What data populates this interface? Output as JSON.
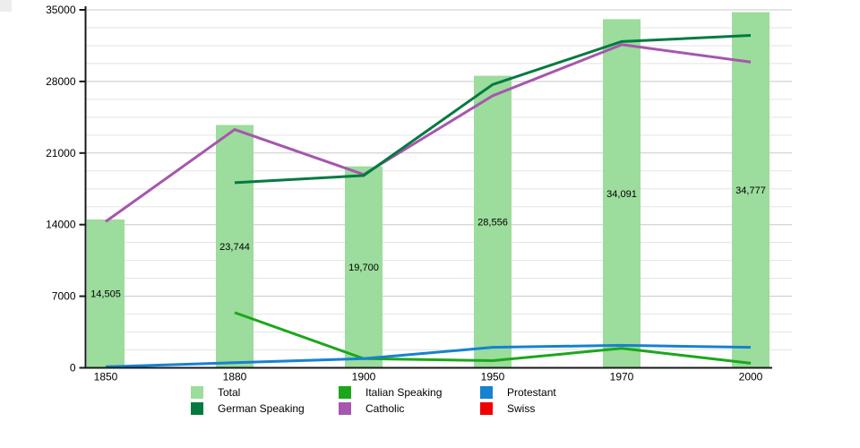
{
  "chart_data": {
    "type": "bar+line",
    "categories": [
      "1850",
      "1880",
      "1900",
      "1950",
      "1970",
      "2000"
    ],
    "y_axis": {
      "min": 0,
      "max": 35000,
      "major_tick": 7000,
      "minor_tick": 1750,
      "tick_labels": [
        "0",
        "7000",
        "14000",
        "21000",
        "28000",
        "35000"
      ]
    },
    "grid": {
      "horizontal": true,
      "vertical": false
    },
    "bars": {
      "name": "Total",
      "color": "#9CDC9C",
      "values": [
        14505,
        23744,
        19700,
        28556,
        34091,
        34777
      ],
      "value_labels": [
        "14,505",
        "23,744",
        "19,700",
        "28,556",
        "34,091",
        "34,777"
      ]
    },
    "series": [
      {
        "name": "Italian Speaking",
        "color": "#1BA71B",
        "values": [
          null,
          5400,
          900,
          700,
          1900,
          450
        ]
      },
      {
        "name": "Protestant",
        "color": "#1781D2",
        "values": [
          100,
          500,
          900,
          2000,
          2200,
          2000
        ]
      },
      {
        "name": "Catholic",
        "color": "#A656AE",
        "values": [
          14300,
          23300,
          18900,
          26600,
          31600,
          29900
        ]
      },
      {
        "name": "German Speaking",
        "color": "#047A40",
        "values": [
          null,
          18100,
          18800,
          27700,
          31900,
          32500
        ]
      },
      {
        "name": "Swiss",
        "color": "#F00000",
        "values": [
          null,
          null,
          null,
          null,
          null,
          null
        ],
        "visible": false
      }
    ],
    "legend": {
      "position": "bottom",
      "items": [
        {
          "label": "Total",
          "color": "#9CDC9C"
        },
        {
          "label": "Italian Speaking",
          "color": "#1BA71B"
        },
        {
          "label": "Protestant",
          "color": "#1781D2"
        },
        {
          "label": "German Speaking",
          "color": "#047A40"
        },
        {
          "label": "Catholic",
          "color": "#A656AE"
        },
        {
          "label": "Swiss",
          "color": "#F00000"
        }
      ]
    },
    "colors": {
      "axis": "#1a1a1a",
      "grid_major": "#c8c8c8",
      "grid_minor": "#e3e3e3",
      "text": "#000000"
    }
  }
}
